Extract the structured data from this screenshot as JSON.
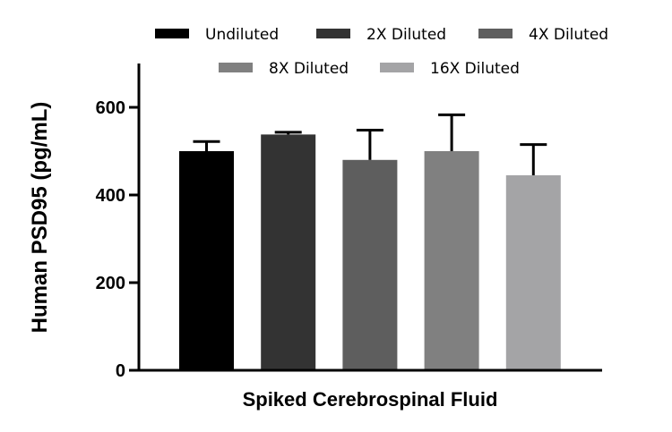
{
  "chart_data": {
    "type": "bar",
    "title": "",
    "xlabel": "Spiked Cerebrospinal Fluid",
    "ylabel": "Human PSD95 (pg/mL)",
    "ylim": [
      0,
      700
    ],
    "yticks": [
      0,
      200,
      400,
      600
    ],
    "tick_labels": [
      "0",
      "200",
      "400",
      "600"
    ],
    "grid": false,
    "legend_position": "top",
    "series": [
      {
        "name": "Undiluted",
        "value": 500,
        "error": 22,
        "color": "#000000"
      },
      {
        "name": "2X Diluted",
        "value": 538,
        "error": 5,
        "color": "#333333"
      },
      {
        "name": "4X Diluted",
        "value": 480,
        "error": 68,
        "color": "#5e5e5e"
      },
      {
        "name": "8X Diluted",
        "value": 500,
        "error": 83,
        "color": "#808080"
      },
      {
        "name": "16X Diluted",
        "value": 445,
        "error": 70,
        "color": "#a4a4a6"
      }
    ]
  }
}
